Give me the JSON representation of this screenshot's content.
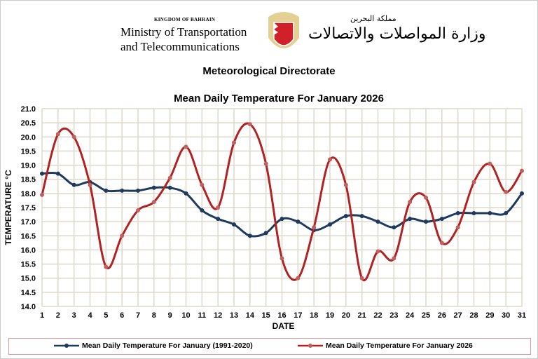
{
  "header": {
    "kingdom": "KINGDOM OF BAHRAIN",
    "ministry_line1": "Ministry of Transportation",
    "ministry_line2": "and Telecommunications",
    "arabic_kingdom": "مملكة البحرين",
    "arabic_ministry": "وزارة المواصلات والاتصالات",
    "directorate": "Meteorological Directorate"
  },
  "chart_data": {
    "type": "line",
    "title": "Mean Daily Temperature For January 2026",
    "xlabel": "DATE",
    "ylabel": "TEMPERATURE °C",
    "ylim": [
      14.0,
      21.0
    ],
    "yticks": [
      "14.0",
      "14.5",
      "15.0",
      "15.5",
      "16.0",
      "16.5",
      "17.0",
      "17.5",
      "18.0",
      "18.5",
      "19.0",
      "19.5",
      "20.0",
      "20.5",
      "21.0"
    ],
    "x": [
      1,
      2,
      3,
      4,
      5,
      6,
      7,
      8,
      9,
      10,
      11,
      12,
      13,
      14,
      15,
      16,
      17,
      18,
      19,
      20,
      21,
      22,
      23,
      24,
      25,
      26,
      27,
      28,
      29,
      30,
      31
    ],
    "grid": true,
    "legend_position": "bottom",
    "series": [
      {
        "name": "Mean Daily Temperature For January (1991-2020)",
        "color": "#1f3a5f",
        "values": [
          18.7,
          18.7,
          18.3,
          18.4,
          18.1,
          18.1,
          18.1,
          18.2,
          18.2,
          18.0,
          17.4,
          17.1,
          16.9,
          16.5,
          16.6,
          17.1,
          17.0,
          16.7,
          16.9,
          17.2,
          17.2,
          17.0,
          16.8,
          17.1,
          17.0,
          17.1,
          17.3,
          17.3,
          17.3,
          17.3,
          18.0
        ]
      },
      {
        "name": "Mean Daily Temperature For January 2026",
        "color": "#b22222",
        "values": [
          17.95,
          20.1,
          20.0,
          18.3,
          15.4,
          16.5,
          17.4,
          17.7,
          18.55,
          19.65,
          18.3,
          17.5,
          19.8,
          20.45,
          19.05,
          15.7,
          15.0,
          16.8,
          19.2,
          18.3,
          15.0,
          15.95,
          15.7,
          17.7,
          17.85,
          16.25,
          16.8,
          18.4,
          19.05,
          18.05,
          18.8
        ]
      }
    ]
  }
}
